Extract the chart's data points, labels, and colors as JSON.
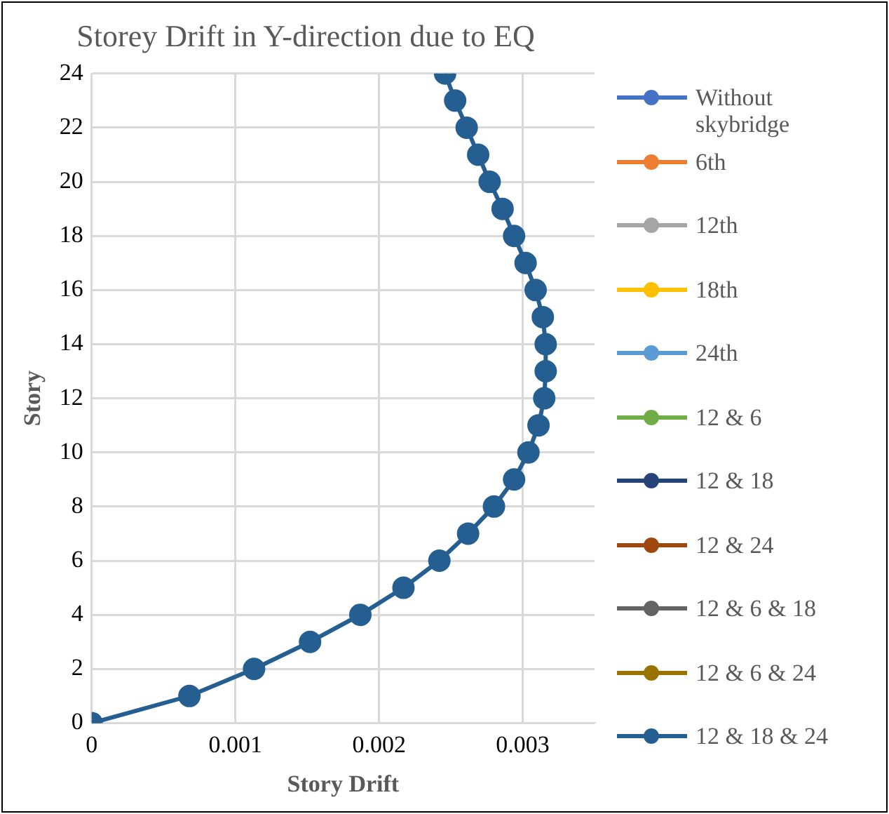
{
  "chart_data": {
    "type": "line",
    "title": "Storey Drift in Y-direction due to EQ",
    "xlabel": "Story Drift",
    "ylabel": "Story",
    "xlim": [
      0,
      0.0035
    ],
    "xticks": [
      0,
      0.001,
      0.002,
      0.003
    ],
    "ylim": [
      0,
      24
    ],
    "yticks": [
      0,
      2,
      4,
      6,
      8,
      10,
      12,
      14,
      16,
      18,
      20,
      22,
      24
    ],
    "grid": true,
    "legend": "right",
    "marker": "circle",
    "line_style": "solid",
    "series": [
      {
        "name": "Without skybridge",
        "color": "#4472c4",
        "values": [
          null,
          null,
          null,
          null,
          null,
          null,
          null,
          null,
          null,
          null,
          null,
          null,
          null,
          null,
          null,
          null,
          null,
          null,
          null,
          null,
          null,
          null,
          null,
          null,
          null
        ]
      },
      {
        "name": "6th",
        "color": "#ed7d31",
        "values": [
          null,
          null,
          null,
          null,
          null,
          null,
          null,
          null,
          null,
          null,
          null,
          null,
          null,
          null,
          null,
          null,
          null,
          null,
          null,
          null,
          null,
          null,
          null,
          null,
          null
        ]
      },
      {
        "name": "12th",
        "color": "#a5a5a5",
        "values": [
          null,
          null,
          null,
          null,
          null,
          null,
          null,
          null,
          null,
          null,
          null,
          null,
          null,
          null,
          null,
          null,
          null,
          null,
          null,
          null,
          null,
          null,
          null,
          null,
          null
        ]
      },
      {
        "name": "18th",
        "color": "#ffc000",
        "values": [
          null,
          null,
          null,
          null,
          null,
          null,
          null,
          null,
          null,
          null,
          null,
          null,
          null,
          null,
          null,
          null,
          null,
          null,
          null,
          null,
          null,
          null,
          null,
          null,
          null
        ]
      },
      {
        "name": "24th",
        "color": "#5b9bd5",
        "values": [
          null,
          null,
          null,
          null,
          null,
          null,
          null,
          null,
          null,
          null,
          null,
          null,
          null,
          null,
          null,
          null,
          null,
          null,
          null,
          null,
          null,
          null,
          null,
          null,
          null
        ]
      },
      {
        "name": "12 & 6",
        "color": "#70ad47",
        "values": [
          null,
          null,
          null,
          null,
          null,
          null,
          null,
          null,
          null,
          null,
          null,
          null,
          null,
          null,
          null,
          null,
          null,
          null,
          null,
          null,
          null,
          null,
          null,
          null,
          null
        ]
      },
      {
        "name": "12 & 18",
        "color": "#264478",
        "values": [
          null,
          null,
          null,
          null,
          null,
          null,
          null,
          null,
          null,
          null,
          null,
          null,
          null,
          null,
          null,
          null,
          null,
          null,
          null,
          null,
          null,
          null,
          null,
          null,
          null
        ]
      },
      {
        "name": "12 & 24",
        "color": "#9e480e",
        "values": [
          null,
          null,
          null,
          null,
          null,
          null,
          null,
          null,
          null,
          null,
          null,
          null,
          null,
          null,
          null,
          null,
          null,
          null,
          null,
          null,
          null,
          null,
          null,
          null,
          null
        ]
      },
      {
        "name": "12 & 6 & 18",
        "color": "#636363",
        "values": [
          null,
          null,
          null,
          null,
          null,
          null,
          null,
          null,
          null,
          null,
          null,
          null,
          null,
          null,
          null,
          null,
          null,
          null,
          null,
          null,
          null,
          null,
          null,
          null,
          null
        ]
      },
      {
        "name": "12 & 6 & 24",
        "color": "#997300",
        "values": [
          null,
          null,
          null,
          null,
          null,
          null,
          null,
          null,
          null,
          null,
          null,
          null,
          null,
          null,
          null,
          null,
          null,
          null,
          null,
          null,
          null,
          null,
          null,
          null,
          null
        ]
      },
      {
        "name": "12 & 18 & 24",
        "color": "#255e91",
        "x": [
          0,
          0.00068,
          0.00113,
          0.00152,
          0.00187,
          0.00217,
          0.00242,
          0.00262,
          0.0028,
          0.00294,
          0.00304,
          0.00311,
          0.00315,
          0.00316,
          0.00316,
          0.00314,
          0.00309,
          0.00302,
          0.00294,
          0.00286,
          0.00277,
          0.00269,
          0.00261,
          0.00253,
          0.00246
        ],
        "values": [
          0,
          1,
          2,
          3,
          4,
          5,
          6,
          7,
          8,
          9,
          10,
          11,
          12,
          13,
          14,
          15,
          16,
          17,
          18,
          19,
          20,
          21,
          22,
          23,
          24
        ]
      }
    ]
  }
}
